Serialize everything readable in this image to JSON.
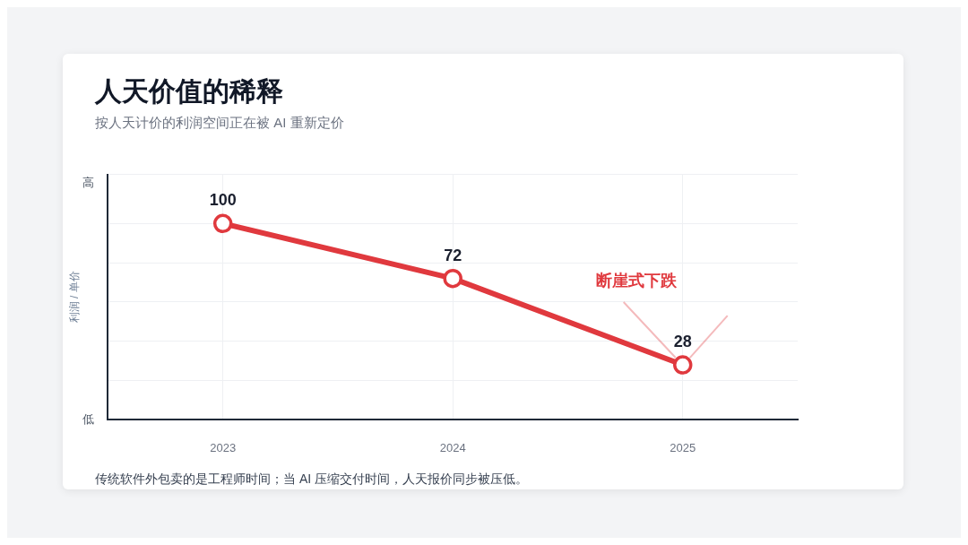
{
  "chart_data": {
    "type": "line",
    "title": "人天价值的稀释",
    "subtitle": "按人天计价的利润空间正在被 AI 重新定价",
    "ylabel": "利润 / 单价",
    "categories": [
      "2023",
      "2024",
      "2025"
    ],
    "series": [
      {
        "color": "#e0393e",
        "values": [
          100,
          72,
          28
        ]
      }
    ],
    "ylim": [
      0,
      125
    ],
    "grid": true,
    "legend": false,
    "marker": "circle",
    "line_style": "solid",
    "data_labels": true,
    "annotations": [
      "断崖式下跌",
      "高",
      "低",
      "传统软件外包卖的是工程师时间；当 AI 压缩交付时间，人天报价同步被压低。"
    ]
  }
}
